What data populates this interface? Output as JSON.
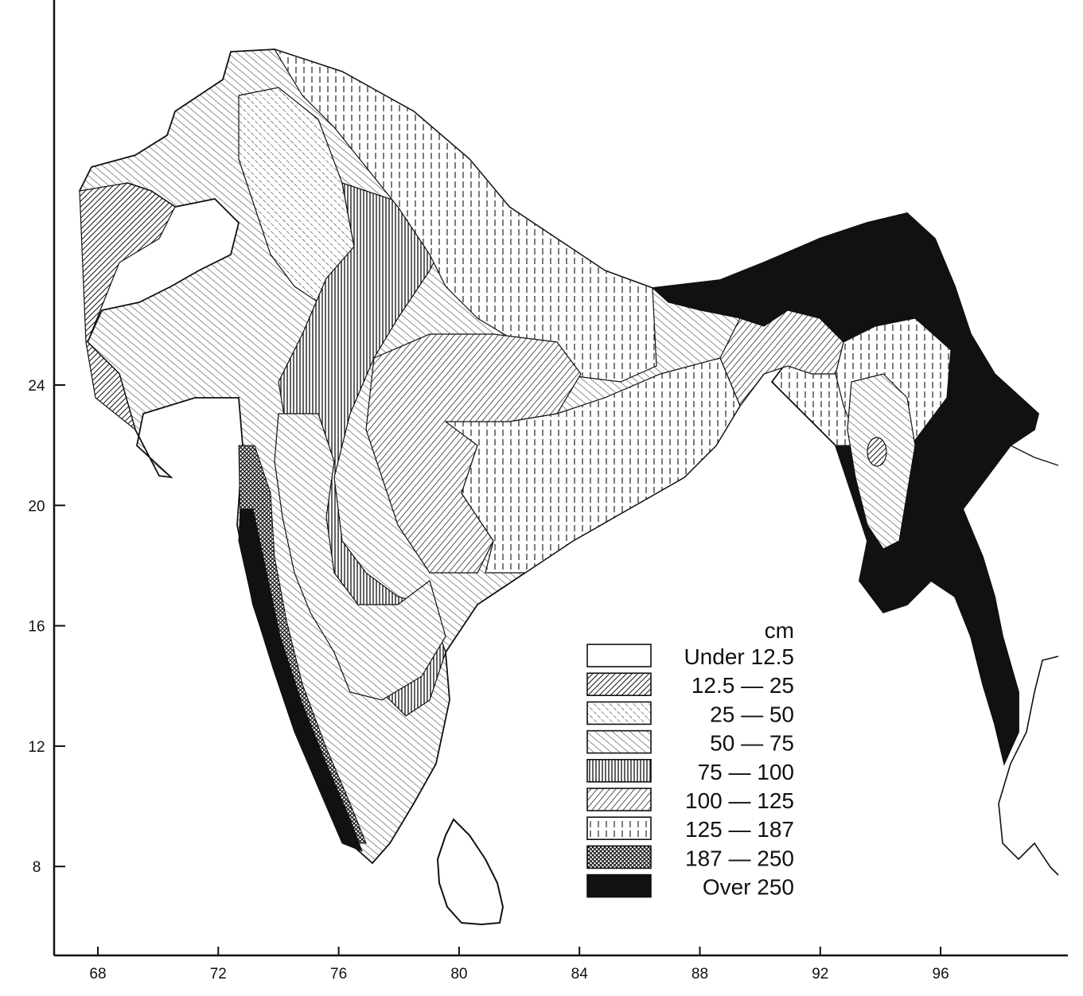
{
  "map": {
    "x_ticks": [
      "68",
      "72",
      "76",
      "80",
      "84",
      "88",
      "92",
      "96"
    ],
    "y_ticks": [
      "24",
      "20",
      "16",
      "12",
      "8"
    ],
    "x_tick_values": [
      68,
      72,
      76,
      80,
      84,
      88,
      92,
      96
    ],
    "y_tick_values": [
      24,
      20,
      16,
      12,
      8
    ]
  },
  "legend": {
    "unit": "cm",
    "items": [
      {
        "label": "Under  12.5",
        "pattern": "none"
      },
      {
        "label": "12.5 — 25",
        "pattern": "diag-dense"
      },
      {
        "label": "25 — 50",
        "pattern": "diag-dashed"
      },
      {
        "label": "50 — 75",
        "pattern": "diag-fine"
      },
      {
        "label": "75 — 100",
        "pattern": "vertical-dense"
      },
      {
        "label": "100 — 125",
        "pattern": "diag-hatch"
      },
      {
        "label": "125 — 187",
        "pattern": "vertical-grid"
      },
      {
        "label": "187 — 250",
        "pattern": "crosshatch"
      },
      {
        "label": "Over  250",
        "pattern": "solid-black"
      }
    ]
  },
  "colors": {
    "ink": "#111111",
    "paper": "#ffffff"
  }
}
